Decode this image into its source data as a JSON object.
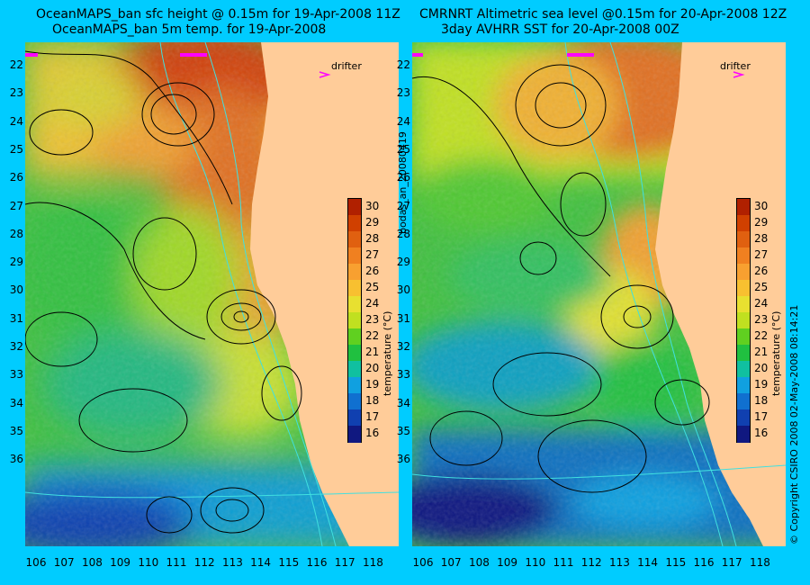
{
  "left": {
    "title_line1": "OceanMAPS_ban sfc height @ 0.15m for 19-Apr-2008 11Z",
    "title_line2": "OceanMAPS_ban 5m temp. for 19-Apr-2008"
  },
  "right": {
    "title_line1": "CMRNRT Altimetric sea level  @0.15m  for 20-Apr-2008 12Z",
    "title_line2": "3day AVHRR SST for 20-Apr-2008 00Z"
  },
  "drifter_label": "drifter",
  "colorbar": {
    "title": "temperature (°C)",
    "ticks": [
      "30",
      "29",
      "28",
      "27",
      "26",
      "25",
      "24",
      "23",
      "22",
      "21",
      "20",
      "19",
      "18",
      "17",
      "16"
    ],
    "colors": [
      "#b02000",
      "#d04000",
      "#e06010",
      "#f08020",
      "#f8a030",
      "#f8c030",
      "#e8e030",
      "#c0e020",
      "#60d020",
      "#20c040",
      "#10c0a0",
      "#10a0e0",
      "#1070d0",
      "#1040b0",
      "#101880"
    ]
  },
  "lat_labels": [
    "22",
    "23",
    "24",
    "25",
    "26",
    "27",
    "28",
    "29",
    "30",
    "31",
    "32",
    "33",
    "34",
    "35",
    "36"
  ],
  "lon_labels": [
    "106",
    "107",
    "108",
    "109",
    "110",
    "111",
    "112",
    "113",
    "114",
    "115",
    "116",
    "117",
    "118"
  ],
  "side_text_left": "bodas_an_20080419",
  "side_text_right": "© Copyright CSIRO 2008   02-May-2008 08:14:21",
  "colors": {
    "background": "#00ccff",
    "land": "#ffcc99",
    "contour": "#000000",
    "isobath": "#40e0e0",
    "drifter": "#ff00ff"
  }
}
